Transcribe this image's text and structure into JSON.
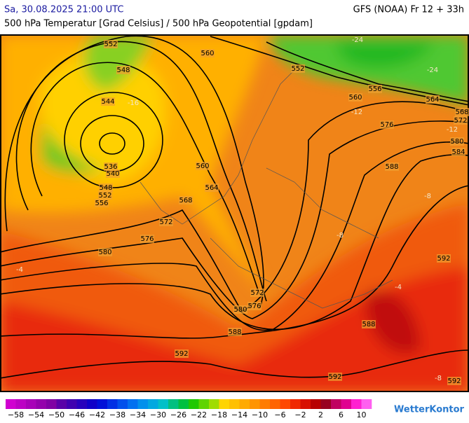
{
  "header": {
    "datetime": "Sa, 30.08.2025 21:00 UTC",
    "model": "GFS (NOAA) Fr 12 + 33h",
    "subtitle": "500 hPa Temperatur [Grad Celsius] / 500 hPa Geopotential [gpdam]"
  },
  "map": {
    "geopotential_labels": [
      "552",
      "560",
      "548",
      "552",
      "556",
      "560",
      "564",
      "568",
      "572",
      "544",
      "576",
      "580",
      "584",
      "536",
      "540",
      "560",
      "588",
      "548",
      "564",
      "552",
      "556",
      "568",
      "572",
      "576",
      "580",
      "592",
      "572",
      "576",
      "580",
      "588",
      "588",
      "592",
      "592",
      "592"
    ],
    "temperature_labels": [
      "-24",
      "-24",
      "-16",
      "-12",
      "-12",
      "-8",
      "-8",
      "-4",
      "-4",
      "-8"
    ]
  },
  "legend": {
    "colors": [
      "#d000d0",
      "#bc00c4",
      "#a800b8",
      "#9400ac",
      "#8000a4",
      "#5a00a8",
      "#4000b0",
      "#2800bc",
      "#1000c8",
      "#0010d8",
      "#0030e4",
      "#0050ec",
      "#0070f0",
      "#0090ec",
      "#00a8e0",
      "#00c0c8",
      "#00c080",
      "#00c040",
      "#20c800",
      "#60d400",
      "#a0dc00",
      "#ffd400",
      "#ffc000",
      "#ffaa00",
      "#ff9400",
      "#ff7c00",
      "#ff6400",
      "#ff4800",
      "#f02800",
      "#d81000",
      "#b80000",
      "#980020",
      "#c00060",
      "#e00090",
      "#ff20d0",
      "#ff60f0"
    ],
    "labels": [
      "−58",
      "−54",
      "−50",
      "−46",
      "−42",
      "−38",
      "−34",
      "−30",
      "−26",
      "−22",
      "−18",
      "−14",
      "−10",
      "−6",
      "−2",
      "2",
      "6",
      "10"
    ]
  },
  "logo": "WetterKontor"
}
